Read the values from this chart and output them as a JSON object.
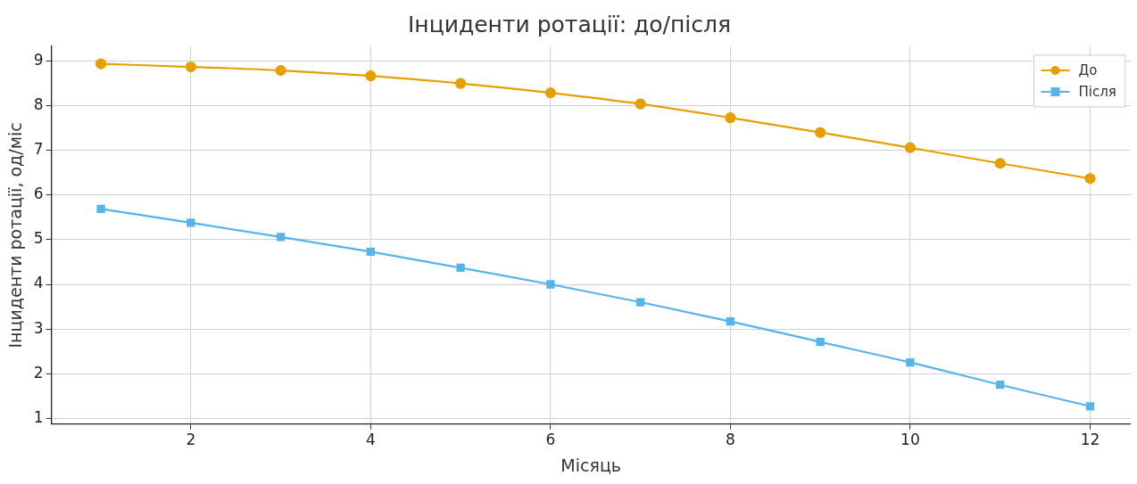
{
  "chart_data": {
    "type": "line",
    "title": "Інциденти ротації: до/після",
    "xlabel": "Місяць",
    "ylabel": "Інциденти ротації, од/міс",
    "x": [
      1,
      2,
      3,
      4,
      5,
      6,
      7,
      8,
      9,
      10,
      11,
      12
    ],
    "series": [
      {
        "name": "До",
        "color": "#e69f00",
        "marker": "circle",
        "values": [
          8.94,
          8.87,
          8.79,
          8.67,
          8.5,
          8.29,
          8.04,
          7.73,
          7.4,
          7.06,
          6.71,
          6.37
        ]
      },
      {
        "name": "Після",
        "color": "#56b4e9",
        "marker": "square",
        "values": [
          5.69,
          5.38,
          5.06,
          4.73,
          4.37,
          4.0,
          3.6,
          3.17,
          2.71,
          2.25,
          1.75,
          1.27
        ]
      }
    ],
    "xlim": [
      0.45,
      12.45
    ],
    "xticks": [
      2,
      4,
      6,
      8,
      10,
      12
    ],
    "ylim": [
      0.87,
      9.33
    ],
    "yticks": [
      1,
      2,
      3,
      4,
      5,
      6,
      7,
      8,
      9
    ],
    "grid": true,
    "legend": "top right",
    "line_style": "solid"
  }
}
